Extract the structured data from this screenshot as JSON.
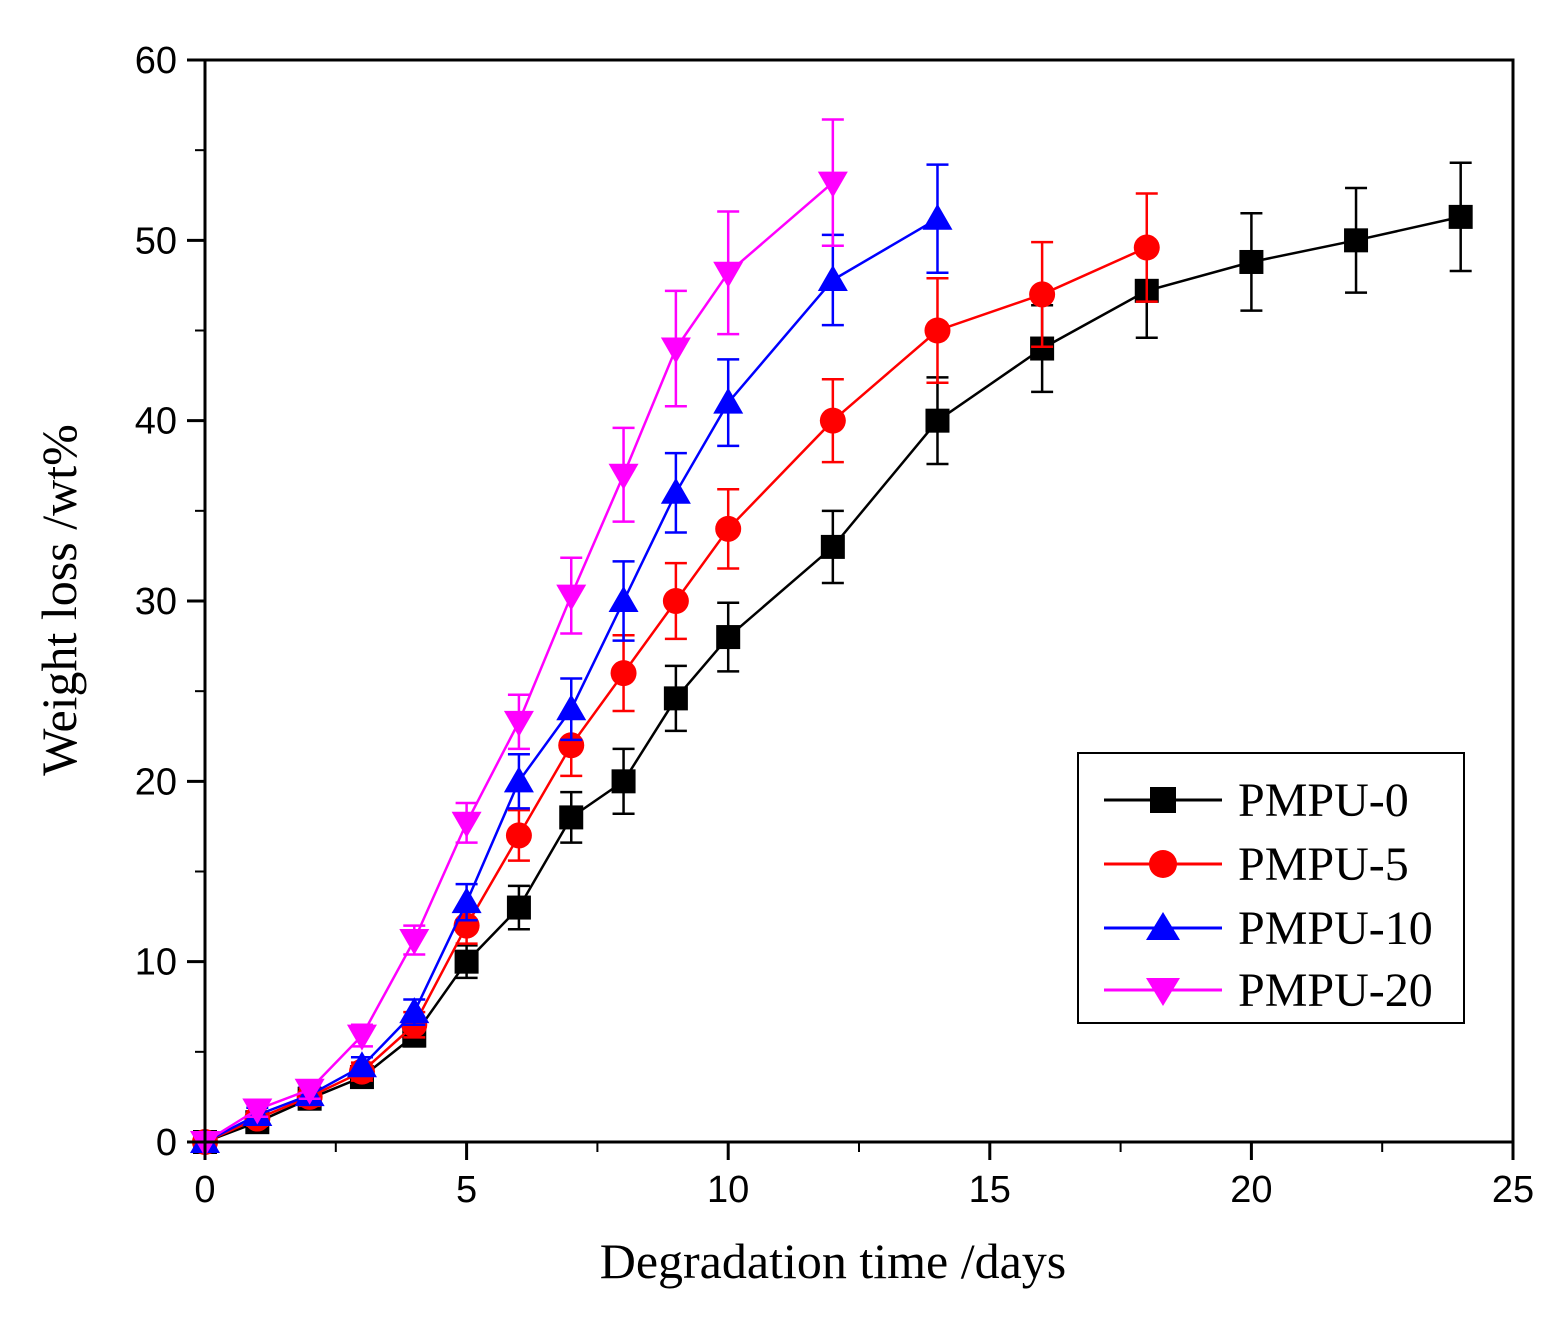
{
  "chart_data": {
    "type": "line",
    "title": "",
    "xlabel": "Degradation time /days",
    "ylabel": "Weight loss /wt%",
    "xlim": [
      0,
      25
    ],
    "ylim": [
      0,
      60
    ],
    "x_ticks": [
      0,
      5,
      10,
      15,
      20,
      25
    ],
    "y_ticks": [
      0,
      10,
      20,
      30,
      40,
      50,
      60
    ],
    "x_tick_labels": [
      "0",
      "5",
      "10",
      "15",
      "20",
      "25"
    ],
    "y_tick_labels": [
      "0",
      "10",
      "20",
      "30",
      "40",
      "50",
      "60"
    ],
    "grid": false,
    "legend_position": "bottom-right",
    "series": [
      {
        "name": "PMPU-0",
        "color": "#000000",
        "marker": "square",
        "x": [
          0,
          1,
          2,
          3,
          4,
          5,
          6,
          7,
          8,
          9,
          10,
          12,
          14,
          16,
          18,
          20,
          22,
          24
        ],
        "y": [
          0,
          1.1,
          2.4,
          3.6,
          5.9,
          10.0,
          13.0,
          18.0,
          20.0,
          24.6,
          28.0,
          33.0,
          40.0,
          44.0,
          47.2,
          48.8,
          50.0,
          51.3
        ],
        "err": [
          0,
          0.4,
          0.5,
          0.5,
          0.6,
          0.9,
          1.2,
          1.4,
          1.8,
          1.8,
          1.9,
          2.0,
          2.4,
          2.4,
          2.6,
          2.7,
          2.9,
          3.0
        ]
      },
      {
        "name": "PMPU-5",
        "color": "#ff0000",
        "marker": "circle",
        "x": [
          0,
          1,
          2,
          3,
          4,
          5,
          6,
          7,
          8,
          9,
          10,
          12,
          14,
          16,
          18
        ],
        "y": [
          0,
          1.3,
          2.5,
          3.9,
          6.5,
          12.0,
          17.0,
          22.0,
          26.0,
          30.0,
          34.0,
          40.0,
          45.0,
          47.0,
          49.6
        ],
        "err": [
          0,
          0.4,
          0.5,
          0.5,
          0.7,
          1.0,
          1.4,
          1.7,
          2.1,
          2.1,
          2.2,
          2.3,
          2.9,
          2.9,
          3.0
        ]
      },
      {
        "name": "PMPU-10",
        "color": "#0000ff",
        "marker": "triangle-up",
        "x": [
          0,
          1,
          2,
          3,
          4,
          5,
          6,
          7,
          8,
          9,
          10,
          12,
          14
        ],
        "y": [
          0,
          1.5,
          2.6,
          4.2,
          7.2,
          13.3,
          20.0,
          24.0,
          30.0,
          36.0,
          41.0,
          47.8,
          51.2
        ],
        "err": [
          0,
          0.4,
          0.5,
          0.5,
          0.7,
          1.0,
          1.5,
          1.7,
          2.2,
          2.2,
          2.4,
          2.5,
          3.0
        ]
      },
      {
        "name": "PMPU-20",
        "color": "#ff00ff",
        "marker": "triangle-down",
        "x": [
          0,
          1,
          2,
          3,
          4,
          5,
          6,
          7,
          8,
          9,
          10,
          12
        ],
        "y": [
          0,
          1.8,
          2.9,
          5.9,
          11.2,
          17.7,
          23.3,
          30.3,
          37.0,
          44.0,
          48.2,
          53.2
        ],
        "err": [
          0,
          0.4,
          0.5,
          0.6,
          0.8,
          1.1,
          1.5,
          2.1,
          2.6,
          3.2,
          3.4,
          3.5
        ]
      }
    ]
  }
}
